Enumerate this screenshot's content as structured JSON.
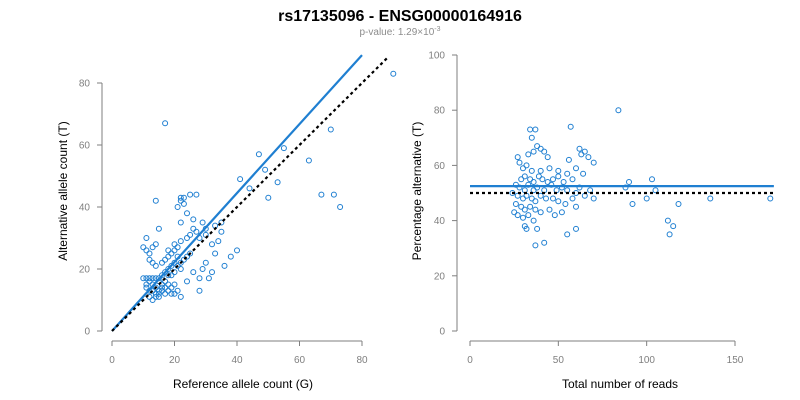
{
  "title": "rs17135096 - ENSG00000164916",
  "subtitle": {
    "prefix": "p-value: 1.29×10",
    "exponent": "-3"
  },
  "colors": {
    "points": "#1f7fd1",
    "fit": "#1f7fd1",
    "reference": "#000000",
    "axis": "#7f7f7f",
    "subtitle": "#8c8c8c"
  },
  "chart_data": [
    {
      "type": "scatter",
      "xlabel": "Reference allele count (G)",
      "ylabel": "Alternative allele count (T)",
      "xlim": [
        0,
        90
      ],
      "ylim": [
        0,
        90
      ],
      "xticks": [
        0,
        20,
        40,
        60,
        80
      ],
      "yticks": [
        0,
        20,
        40,
        60,
        80
      ],
      "fit_line": [
        [
          0,
          0
        ],
        [
          80,
          89
        ]
      ],
      "reference_line": [
        [
          0,
          0
        ],
        [
          88,
          88
        ]
      ],
      "points": [
        [
          17,
          67
        ],
        [
          14,
          42
        ],
        [
          10,
          27
        ],
        [
          11,
          26
        ],
        [
          11,
          30
        ],
        [
          12,
          25
        ],
        [
          13,
          27
        ],
        [
          14,
          28
        ],
        [
          15,
          33
        ],
        [
          12,
          23
        ],
        [
          13,
          22
        ],
        [
          14,
          21
        ],
        [
          16,
          22
        ],
        [
          17,
          23
        ],
        [
          18,
          24
        ],
        [
          18,
          26
        ],
        [
          19,
          25
        ],
        [
          20,
          26
        ],
        [
          20,
          28
        ],
        [
          21,
          27
        ],
        [
          22,
          29
        ],
        [
          21,
          24
        ],
        [
          20,
          22
        ],
        [
          21,
          21
        ],
        [
          22,
          22
        ],
        [
          22,
          20
        ],
        [
          23,
          23
        ],
        [
          24,
          24
        ],
        [
          25,
          25
        ],
        [
          24,
          30
        ],
        [
          25,
          31
        ],
        [
          26,
          33
        ],
        [
          27,
          32
        ],
        [
          28,
          30
        ],
        [
          29,
          35
        ],
        [
          30,
          33
        ],
        [
          23,
          41
        ],
        [
          22,
          42
        ],
        [
          23,
          43
        ],
        [
          22,
          43
        ],
        [
          25,
          44
        ],
        [
          27,
          44
        ],
        [
          26,
          36
        ],
        [
          24,
          38
        ],
        [
          21,
          40
        ],
        [
          22,
          35
        ],
        [
          10,
          17
        ],
        [
          11,
          17
        ],
        [
          12,
          17
        ],
        [
          13,
          17
        ],
        [
          14,
          17
        ],
        [
          15,
          17
        ],
        [
          11,
          15
        ],
        [
          12,
          16
        ],
        [
          13,
          15
        ],
        [
          14,
          14
        ],
        [
          15,
          16
        ],
        [
          16,
          15
        ],
        [
          17,
          16
        ],
        [
          16,
          18
        ],
        [
          17,
          19
        ],
        [
          18,
          18
        ],
        [
          18,
          20
        ],
        [
          19,
          21
        ],
        [
          20,
          19
        ],
        [
          19,
          18
        ],
        [
          11,
          14
        ],
        [
          12,
          13
        ],
        [
          13,
          13
        ],
        [
          14,
          12
        ],
        [
          15,
          12
        ],
        [
          16,
          13
        ],
        [
          17,
          14
        ],
        [
          18,
          13
        ],
        [
          19,
          14
        ],
        [
          20,
          15
        ],
        [
          12,
          11
        ],
        [
          13,
          10
        ],
        [
          14,
          11
        ],
        [
          15,
          13
        ],
        [
          15,
          11
        ],
        [
          16,
          14
        ],
        [
          17,
          12
        ],
        [
          18,
          15
        ],
        [
          19,
          12
        ],
        [
          20,
          12
        ],
        [
          21,
          13
        ],
        [
          22,
          11
        ],
        [
          24,
          16
        ],
        [
          26,
          19
        ],
        [
          28,
          17
        ],
        [
          29,
          20
        ],
        [
          30,
          22
        ],
        [
          28,
          13
        ],
        [
          31,
          17
        ],
        [
          32,
          19
        ],
        [
          33,
          25
        ],
        [
          34,
          29
        ],
        [
          32,
          28
        ],
        [
          30,
          31
        ],
        [
          35,
          32
        ],
        [
          36,
          21
        ],
        [
          38,
          24
        ],
        [
          40,
          26
        ],
        [
          33,
          34
        ],
        [
          35,
          35
        ],
        [
          41,
          49
        ],
        [
          44,
          46
        ],
        [
          47,
          57
        ],
        [
          50,
          43
        ],
        [
          49,
          52
        ],
        [
          53,
          48
        ],
        [
          55,
          59
        ],
        [
          63,
          55
        ],
        [
          67,
          44
        ],
        [
          70,
          65
        ],
        [
          71,
          44
        ],
        [
          73,
          40
        ],
        [
          90,
          83
        ]
      ]
    },
    {
      "type": "scatter",
      "xlabel": "Total number of reads",
      "ylabel": "Percentage alternative (T)",
      "xlim": [
        0,
        170
      ],
      "ylim": [
        0,
        100
      ],
      "xticks": [
        0,
        50,
        100,
        150
      ],
      "yticks": [
        0,
        20,
        40,
        60,
        80,
        100
      ],
      "fit_line": [
        [
          0,
          52.5
        ],
        [
          172,
          52.5
        ]
      ],
      "reference_line": [
        [
          0,
          50
        ],
        [
          172,
          50
        ]
      ],
      "points": [
        [
          84,
          80
        ],
        [
          34,
          73
        ],
        [
          37,
          73
        ],
        [
          57,
          74
        ],
        [
          35,
          70
        ],
        [
          38,
          67
        ],
        [
          40,
          66
        ],
        [
          42,
          65
        ],
        [
          36,
          65
        ],
        [
          33,
          64
        ],
        [
          44,
          63
        ],
        [
          56,
          62
        ],
        [
          62,
          66
        ],
        [
          63,
          64
        ],
        [
          65,
          65
        ],
        [
          67,
          63
        ],
        [
          70,
          61
        ],
        [
          28,
          61
        ],
        [
          27,
          63
        ],
        [
          30,
          59
        ],
        [
          32,
          60
        ],
        [
          35,
          58
        ],
        [
          40,
          58
        ],
        [
          45,
          59
        ],
        [
          50,
          58
        ],
        [
          55,
          57
        ],
        [
          60,
          59
        ],
        [
          64,
          57
        ],
        [
          29,
          55
        ],
        [
          31,
          56
        ],
        [
          34,
          55
        ],
        [
          36,
          54
        ],
        [
          39,
          56
        ],
        [
          41,
          55
        ],
        [
          44,
          54
        ],
        [
          47,
          55
        ],
        [
          50,
          56
        ],
        [
          53,
          54
        ],
        [
          58,
          55
        ],
        [
          26,
          53
        ],
        [
          28,
          52
        ],
        [
          31,
          51
        ],
        [
          33,
          53
        ],
        [
          36,
          51
        ],
        [
          38,
          52
        ],
        [
          42,
          51
        ],
        [
          46,
          53
        ],
        [
          49,
          51
        ],
        [
          52,
          52
        ],
        [
          55,
          51
        ],
        [
          60,
          50
        ],
        [
          62,
          52
        ],
        [
          65,
          49
        ],
        [
          68,
          51
        ],
        [
          70,
          48
        ],
        [
          24,
          50
        ],
        [
          27,
          49
        ],
        [
          30,
          48
        ],
        [
          32,
          49
        ],
        [
          35,
          48
        ],
        [
          37,
          47
        ],
        [
          40,
          49
        ],
        [
          43,
          48
        ],
        [
          47,
          48
        ],
        [
          50,
          47
        ],
        [
          54,
          46
        ],
        [
          58,
          48
        ],
        [
          26,
          46
        ],
        [
          29,
          45
        ],
        [
          31,
          44
        ],
        [
          34,
          45
        ],
        [
          37,
          44
        ],
        [
          40,
          43
        ],
        [
          25,
          43
        ],
        [
          27,
          42
        ],
        [
          30,
          41
        ],
        [
          33,
          42
        ],
        [
          36,
          40
        ],
        [
          45,
          44
        ],
        [
          48,
          42
        ],
        [
          52,
          43
        ],
        [
          60,
          45
        ],
        [
          31,
          38
        ],
        [
          32,
          37
        ],
        [
          38,
          37
        ],
        [
          42,
          32
        ],
        [
          37,
          31
        ],
        [
          55,
          35
        ],
        [
          60,
          37
        ],
        [
          88,
          52
        ],
        [
          90,
          54
        ],
        [
          92,
          46
        ],
        [
          100,
          48
        ],
        [
          103,
          55
        ],
        [
          105,
          51
        ],
        [
          112,
          40
        ],
        [
          113,
          35
        ],
        [
          115,
          38
        ],
        [
          118,
          46
        ],
        [
          136,
          48
        ],
        [
          170,
          48
        ]
      ]
    }
  ]
}
